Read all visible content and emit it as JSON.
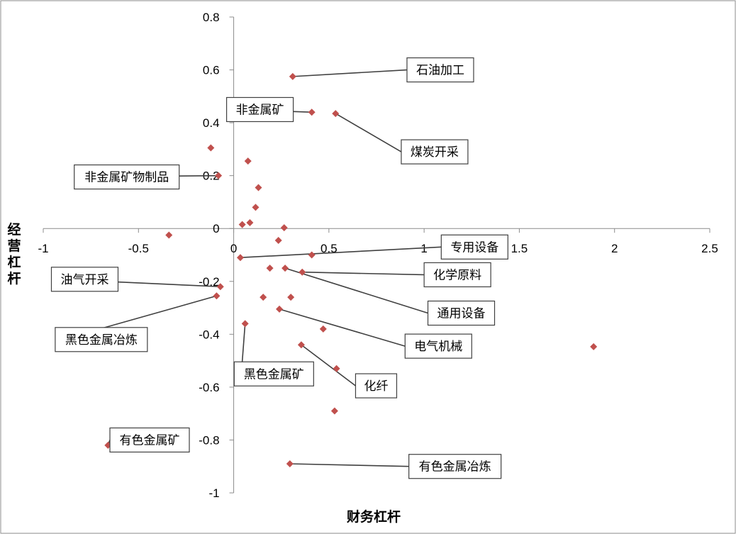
{
  "chart_data": {
    "type": "scatter",
    "xlabel": "财务杠杆",
    "ylabel": "经营杠杆",
    "xlim": [
      -1,
      2.5
    ],
    "ylim": [
      -1,
      0.8
    ],
    "xticks": [
      -1,
      -0.5,
      0,
      0.5,
      1,
      1.5,
      2,
      2.5
    ],
    "yticks": [
      0.8,
      0.6,
      0.4,
      0.2,
      0,
      -0.2,
      -0.4,
      -0.6,
      -0.8,
      -1
    ],
    "xtick_labels": [
      "-1",
      "-0.5",
      "0",
      "0.5",
      "1",
      "1.5",
      "2",
      "2.5"
    ],
    "ytick_labels": [
      "0.8",
      "0.6",
      "0.4",
      "0.2",
      "0",
      "-0.2",
      "-0.4",
      "-0.6",
      "-0.8",
      "-1"
    ],
    "grid": false,
    "legend": "none",
    "marker_color": "#c0504d",
    "points": [
      {
        "x": 0.31,
        "y": 0.575
      },
      {
        "x": 0.41,
        "y": 0.44
      },
      {
        "x": 0.535,
        "y": 0.435
      },
      {
        "x": -0.12,
        "y": 0.305
      },
      {
        "x": 0.075,
        "y": 0.255
      },
      {
        "x": -0.08,
        "y": 0.2
      },
      {
        "x": 0.13,
        "y": 0.155
      },
      {
        "x": 0.115,
        "y": 0.08
      },
      {
        "x": 0.085,
        "y": 0.022
      },
      {
        "x": 0.045,
        "y": 0.015
      },
      {
        "x": 0.265,
        "y": 0.003
      },
      {
        "x": -0.34,
        "y": -0.025
      },
      {
        "x": 0.235,
        "y": -0.045
      },
      {
        "x": 0.41,
        "y": -0.1
      },
      {
        "x": 0.035,
        "y": -0.11
      },
      {
        "x": 0.19,
        "y": -0.15
      },
      {
        "x": 0.27,
        "y": -0.15
      },
      {
        "x": 0.36,
        "y": -0.165
      },
      {
        "x": -0.07,
        "y": -0.22
      },
      {
        "x": -0.09,
        "y": -0.255
      },
      {
        "x": 0.155,
        "y": -0.26
      },
      {
        "x": 0.3,
        "y": -0.26
      },
      {
        "x": 0.24,
        "y": -0.305
      },
      {
        "x": 0.06,
        "y": -0.36
      },
      {
        "x": 0.47,
        "y": -0.38
      },
      {
        "x": 0.355,
        "y": -0.44
      },
      {
        "x": 1.89,
        "y": -0.447
      },
      {
        "x": 0.54,
        "y": -0.53
      },
      {
        "x": 0.53,
        "y": -0.69
      },
      {
        "x": -0.66,
        "y": -0.82
      },
      {
        "x": 0.295,
        "y": -0.89
      }
    ],
    "annotations": [
      {
        "text": "石油加工",
        "point": {
          "x": 0.31,
          "y": 0.575
        },
        "label_at": {
          "x": 0.91,
          "y": 0.6
        }
      },
      {
        "text": "非金属矿",
        "point": {
          "x": 0.41,
          "y": 0.44
        },
        "label_at": {
          "x": 0.0,
          "y": 0.45
        }
      },
      {
        "text": "煤炭开采",
        "point": {
          "x": 0.535,
          "y": 0.435
        },
        "label_at": {
          "x": 0.88,
          "y": 0.29
        }
      },
      {
        "text": "非金属矿物制品",
        "point": {
          "x": -0.08,
          "y": 0.2
        },
        "label_at": {
          "x": -0.8,
          "y": 0.195
        }
      },
      {
        "text": "专用设备",
        "point": {
          "x": 0.035,
          "y": -0.11
        },
        "label_at": {
          "x": 1.09,
          "y": -0.07
        }
      },
      {
        "text": "化学原料",
        "point": {
          "x": 0.36,
          "y": -0.165
        },
        "label_at": {
          "x": 1.0,
          "y": -0.175
        }
      },
      {
        "text": "通用设备",
        "point": {
          "x": 0.27,
          "y": -0.15
        },
        "label_at": {
          "x": 1.02,
          "y": -0.32
        }
      },
      {
        "text": "油气开采",
        "point": {
          "x": -0.07,
          "y": -0.22
        },
        "label_at": {
          "x": -0.92,
          "y": -0.192
        }
      },
      {
        "text": "黑色金属冶炼",
        "point": {
          "x": -0.09,
          "y": -0.255
        },
        "label_at": {
          "x": -0.9,
          "y": -0.42
        }
      },
      {
        "text": "电气机械",
        "point": {
          "x": 0.24,
          "y": -0.305
        },
        "label_at": {
          "x": 0.9,
          "y": -0.445
        }
      },
      {
        "text": "黑色金属矿",
        "point": {
          "x": 0.06,
          "y": -0.36
        },
        "label_at": {
          "x": 0.04,
          "y": -0.55
        }
      },
      {
        "text": "化纤",
        "point": {
          "x": 0.355,
          "y": -0.44
        },
        "label_at": {
          "x": 0.64,
          "y": -0.595
        }
      },
      {
        "text": "有色金属矿",
        "point": {
          "x": -0.66,
          "y": -0.82
        },
        "label_at": {
          "x": -0.65,
          "y": -0.8
        }
      },
      {
        "text": "有色金属冶炼",
        "point": {
          "x": 0.295,
          "y": -0.89
        },
        "label_at": {
          "x": 0.92,
          "y": -0.9
        }
      }
    ]
  }
}
